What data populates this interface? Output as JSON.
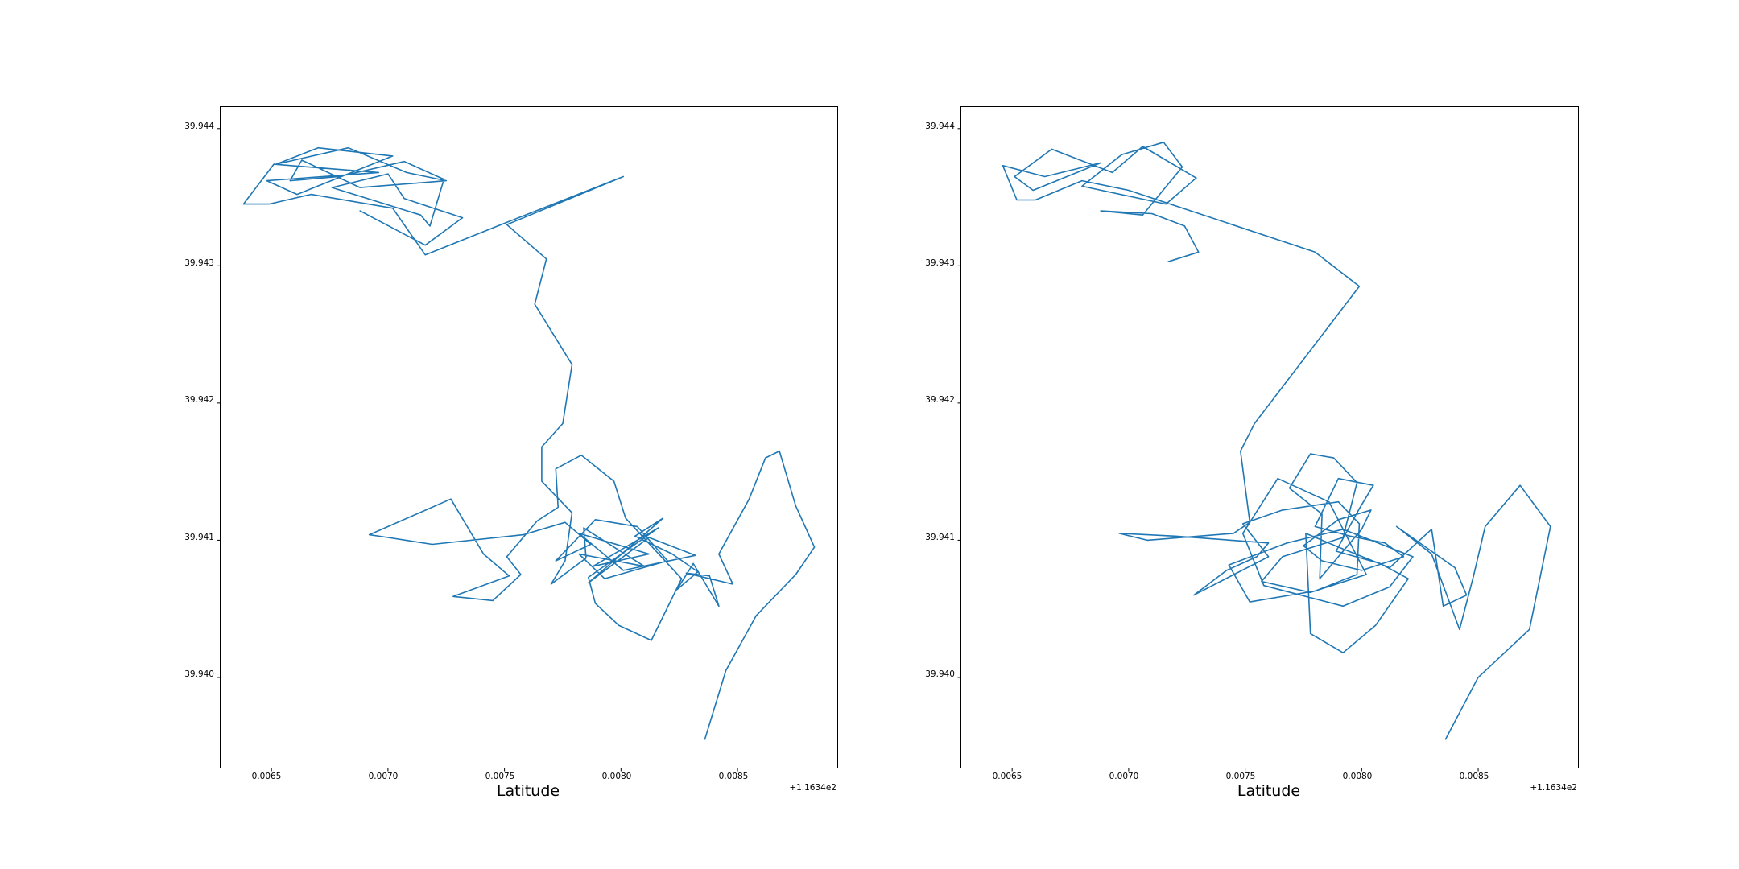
{
  "colors": {
    "series": "#1f77b4",
    "frame": "#000000",
    "background": "#ffffff"
  },
  "chart_data": [
    {
      "type": "line",
      "title": "",
      "xlabel": "Latitude",
      "ylabel": "",
      "x_offset_label": "+1.1634e2",
      "xlim": [
        0.00628,
        0.00893
      ],
      "ylim": [
        39.93934,
        39.94416
      ],
      "xticks": [
        0.0065,
        0.007,
        0.0075,
        0.008,
        0.0085
      ],
      "xtick_labels": [
        "0.0065",
        "0.0070",
        "0.0075",
        "0.0080",
        "0.0085"
      ],
      "yticks": [
        39.94,
        39.941,
        39.942,
        39.943,
        39.944
      ],
      "ytick_labels": [
        "39.940",
        "39.941",
        "39.942",
        "39.943",
        "39.944"
      ],
      "grid": false,
      "series": [
        {
          "x": [
            0.00836,
            0.00845,
            0.00858,
            0.00875,
            0.00883,
            0.00875,
            0.00868,
            0.00862,
            0.00855,
            0.00842,
            0.00848,
            0.00828,
            0.00838,
            0.00842,
            0.00831,
            0.00824,
            0.00833,
            0.00822,
            0.00806,
            0.00818,
            0.00786,
            0.00812,
            0.00832,
            0.00801,
            0.00782,
            0.00812,
            0.00788,
            0.00816,
            0.00786,
            0.00789,
            0.00799,
            0.00813,
            0.00826,
            0.00802,
            0.00797,
            0.00783,
            0.00772,
            0.00773,
            0.00764,
            0.00751,
            0.00757,
            0.00745,
            0.00728,
            0.00752,
            0.00741,
            0.00727,
            0.00692,
            0.007,
            0.00719,
            0.00758,
            0.00776,
            0.00787,
            0.00772,
            0.00789,
            0.00807,
            0.0082,
            0.00793,
            0.00782,
            0.0081,
            0.00784,
            0.00785,
            0.0077,
            0.00776,
            0.00779,
            0.00766,
            0.00766,
            0.00775,
            0.00779,
            0.00763,
            0.00768,
            0.00751,
            0.00801,
            0.00756,
            0.00716,
            0.00702,
            0.00667,
            0.00649,
            0.00638,
            0.00651,
            0.00696,
            0.00648,
            0.00661,
            0.00702,
            0.0067,
            0.00652,
            0.00683,
            0.00708,
            0.00725,
            0.00688,
            0.00663,
            0.00658,
            0.00679,
            0.00707,
            0.00724,
            0.00718,
            0.00714,
            0.00676,
            0.007,
            0.00707,
            0.00732,
            0.00716,
            0.00688
          ],
          "y": [
            39.93955,
            39.94005,
            39.94045,
            39.94075,
            39.94095,
            39.94125,
            39.94165,
            39.9416,
            39.9413,
            39.9409,
            39.94068,
            39.94076,
            39.94074,
            39.94052,
            39.94083,
            39.94064,
            39.94077,
            39.9409,
            39.94103,
            39.94116,
            39.94069,
            39.94102,
            39.94089,
            39.94078,
            39.94105,
            39.9409,
            39.94081,
            39.94109,
            39.94073,
            39.94054,
            39.94038,
            39.94027,
            39.94072,
            39.94116,
            39.94143,
            39.94162,
            39.94152,
            39.94124,
            39.94114,
            39.94088,
            39.94075,
            39.94056,
            39.94059,
            39.94074,
            39.9409,
            39.9413,
            39.94104,
            39.94102,
            39.94097,
            39.94104,
            39.94113,
            39.94097,
            39.94085,
            39.94115,
            39.9411,
            39.94085,
            39.94072,
            39.9409,
            39.94081,
            39.94109,
            39.94087,
            39.94068,
            39.94085,
            39.9412,
            39.94143,
            39.94168,
            39.94185,
            39.94228,
            39.94272,
            39.94305,
            39.9433,
            39.94365,
            39.94335,
            39.94308,
            39.94342,
            39.94352,
            39.94345,
            39.94345,
            39.94374,
            39.94368,
            39.94362,
            39.94352,
            39.9438,
            39.94386,
            39.94374,
            39.94386,
            39.94368,
            39.94362,
            39.94357,
            39.94377,
            39.94362,
            39.94365,
            39.94376,
            39.94363,
            39.94329,
            39.94337,
            39.94357,
            39.94367,
            39.94349,
            39.94335,
            39.94315,
            39.9434
          ]
        }
      ]
    },
    {
      "type": "line",
      "title": "",
      "xlabel": "Latitude",
      "ylabel": "",
      "x_offset_label": "+1.1634e2",
      "xlim": [
        0.00628,
        0.00893
      ],
      "ylim": [
        39.93934,
        39.94416
      ],
      "xticks": [
        0.0065,
        0.007,
        0.0075,
        0.008,
        0.0085
      ],
      "xtick_labels": [
        "0.0065",
        "0.0070",
        "0.0075",
        "0.0080",
        "0.0085"
      ],
      "yticks": [
        39.94,
        39.941,
        39.942,
        39.943,
        39.944
      ],
      "ytick_labels": [
        "39.940",
        "39.941",
        "39.942",
        "39.943",
        "39.944"
      ],
      "grid": false,
      "series": [
        {
          "x": [
            0.00836,
            0.0085,
            0.00872,
            0.00881,
            0.00868,
            0.00853,
            0.00848,
            0.00842,
            0.0083,
            0.00815,
            0.0084,
            0.00845,
            0.00835,
            0.0083,
            0.00812,
            0.0079,
            0.00776,
            0.00778,
            0.00792,
            0.00806,
            0.0082,
            0.00808,
            0.00789,
            0.00799,
            0.00805,
            0.0079,
            0.0078,
            0.00795,
            0.0081,
            0.00818,
            0.008,
            0.00783,
            0.00775,
            0.0079,
            0.00804,
            0.008,
            0.00782,
            0.00783,
            0.00769,
            0.00778,
            0.00788,
            0.00798,
            0.00792,
            0.00766,
            0.00757,
            0.00778,
            0.00802,
            0.00786,
            0.00764,
            0.00749,
            0.00758,
            0.00792,
            0.00812,
            0.00822,
            0.00792,
            0.00768,
            0.00743,
            0.00752,
            0.0078,
            0.00798,
            0.00799,
            0.0079,
            0.00766,
            0.00749,
            0.0076,
            0.00728,
            0.00742,
            0.00755,
            0.0076,
            0.0072,
            0.00696,
            0.00708,
            0.00745,
            0.00752,
            0.00748,
            0.00754,
            0.00799,
            0.0078,
            0.007,
            0.0068,
            0.0066,
            0.00652,
            0.00646,
            0.00664,
            0.00688,
            0.00659,
            0.00651,
            0.00667,
            0.00693,
            0.00706,
            0.00729,
            0.00716,
            0.0068,
            0.00697,
            0.00715,
            0.00723,
            0.00706,
            0.00688,
            0.0071,
            0.00724,
            0.0073,
            0.00717
          ],
          "y": [
            39.93955,
            39.94,
            39.94035,
            39.9411,
            39.9414,
            39.9411,
            39.94074,
            39.94035,
            39.9409,
            39.9411,
            39.9408,
            39.9406,
            39.94052,
            39.94108,
            39.9408,
            39.94095,
            39.94105,
            39.94032,
            39.94018,
            39.94038,
            39.94072,
            39.94083,
            39.94092,
            39.94123,
            39.9414,
            39.94145,
            39.9411,
            39.94103,
            39.94098,
            39.94088,
            39.94078,
            39.94085,
            39.94096,
            39.94115,
            39.94122,
            39.94108,
            39.94072,
            39.94119,
            39.94138,
            39.94163,
            39.9416,
            39.94142,
            39.94102,
            39.94088,
            39.9407,
            39.94062,
            39.94075,
            39.94128,
            39.94145,
            39.94105,
            39.94067,
            39.94052,
            39.94066,
            39.94088,
            39.94108,
            39.94098,
            39.94082,
            39.94055,
            39.94063,
            39.94075,
            39.94112,
            39.94128,
            39.94122,
            39.94112,
            39.94088,
            39.9406,
            39.94078,
            39.94088,
            39.94098,
            39.94103,
            39.94105,
            39.941,
            39.94105,
            39.94113,
            39.94165,
            39.94185,
            39.94285,
            39.9431,
            39.94355,
            39.94362,
            39.94348,
            39.94348,
            39.94373,
            39.94365,
            39.94375,
            39.94355,
            39.94365,
            39.94385,
            39.94368,
            39.94387,
            39.94364,
            39.94345,
            39.94358,
            39.94381,
            39.9439,
            39.94372,
            39.94337,
            39.9434,
            39.94338,
            39.94329,
            39.9431,
            39.94303
          ]
        }
      ]
    }
  ]
}
